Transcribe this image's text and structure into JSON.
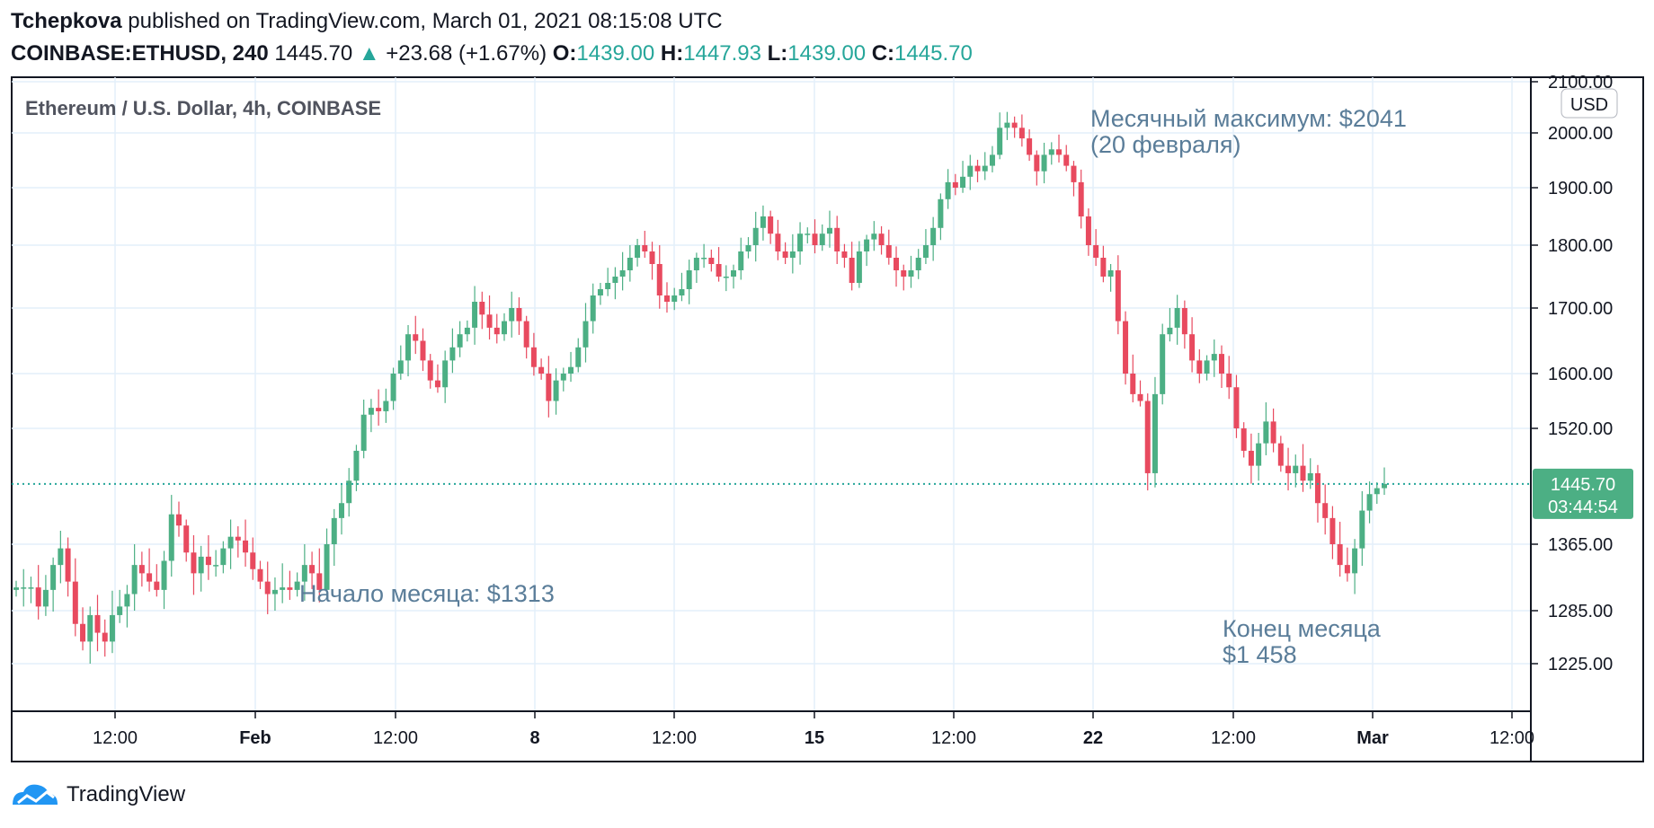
{
  "header": {
    "author": "Tchepkova",
    "published_text": "published on TradingView.com, March 01, 2021 08:15:08 UTC",
    "symbol": "COINBASE:ETHUSD, 240",
    "last": "1445.70",
    "change": "+23.68 (+1.67%)",
    "o_label": "O:",
    "o_value": "1439.00",
    "h_label": "H:",
    "h_value": "1447.93",
    "l_label": "L:",
    "l_value": "1439.00",
    "c_label": "C:",
    "c_value": "1445.70"
  },
  "chart_title": "Ethereum / U.S. Dollar, 4h, COINBASE",
  "currency_badge": "USD",
  "price_label": {
    "price": "1445.70",
    "countdown": "03:44:54"
  },
  "annotations": {
    "monthly_high_line1": "Месячный максимум: $2041",
    "monthly_high_line2": "(20 февраля)",
    "month_start": "Начало месяца: $1313",
    "month_end_line1": "Конец месяца",
    "month_end_line2": "$1 458"
  },
  "footer": {
    "brand": "TradingView",
    "logo_icon": "tradingview-logo-icon"
  },
  "colors": {
    "up": "#26a69a",
    "up_fill": "#4caf84",
    "down": "#ef5350",
    "down_fill": "#e84a5f",
    "annotation": "#5a7d99",
    "grid": "#e3effa",
    "last_line": "#26a69a"
  },
  "chart_data": {
    "type": "candlestick",
    "title": "Ethereum / U.S. Dollar, 4h, COINBASE",
    "x_ticks": [
      "12:00",
      "Feb",
      "12:00",
      "8",
      "12:00",
      "15",
      "12:00",
      "22",
      "12:00",
      "Mar",
      "12:00"
    ],
    "y_ticks": [
      "2100.00",
      "2000.00",
      "1900.00",
      "1800.00",
      "1700.00",
      "1600.00",
      "1520.00",
      "1365.00",
      "1285.00",
      "1225.00"
    ],
    "ylim": [
      1160,
      2100
    ],
    "last_price": 1445.7,
    "grid": true,
    "close_series": [
      1313,
      1313,
      1313,
      1290,
      1310,
      1340,
      1360,
      1320,
      1270,
      1250,
      1280,
      1260,
      1250,
      1280,
      1290,
      1305,
      1340,
      1330,
      1320,
      1310,
      1345,
      1405,
      1390,
      1355,
      1330,
      1350,
      1340,
      1340,
      1360,
      1375,
      1370,
      1355,
      1335,
      1320,
      1305,
      1310,
      1313,
      1310,
      1320,
      1340,
      1330,
      1310,
      1365,
      1400,
      1420,
      1450,
      1490,
      1540,
      1550,
      1545,
      1560,
      1600,
      1620,
      1660,
      1650,
      1620,
      1590,
      1580,
      1620,
      1640,
      1660,
      1670,
      1710,
      1690,
      1670,
      1660,
      1680,
      1700,
      1680,
      1640,
      1610,
      1600,
      1560,
      1590,
      1600,
      1610,
      1640,
      1680,
      1720,
      1730,
      1740,
      1750,
      1760,
      1780,
      1800,
      1790,
      1770,
      1720,
      1710,
      1720,
      1730,
      1760,
      1780,
      1780,
      1770,
      1750,
      1750,
      1760,
      1790,
      1800,
      1830,
      1850,
      1820,
      1790,
      1780,
      1790,
      1820,
      1820,
      1800,
      1820,
      1830,
      1790,
      1780,
      1740,
      1790,
      1810,
      1820,
      1800,
      1780,
      1760,
      1750,
      1760,
      1780,
      1800,
      1830,
      1880,
      1910,
      1900,
      1920,
      1940,
      1930,
      1940,
      1960,
      2010,
      2020,
      2010,
      1990,
      1960,
      1930,
      1960,
      1970,
      1960,
      1940,
      1910,
      1850,
      1800,
      1780,
      1750,
      1760,
      1680,
      1600,
      1570,
      1560,
      1460,
      1570,
      1660,
      1670,
      1700,
      1660,
      1620,
      1600,
      1620,
      1630,
      1600,
      1580,
      1520,
      1490,
      1470,
      1500,
      1530,
      1500,
      1470,
      1460,
      1470,
      1450,
      1460,
      1420,
      1400,
      1365,
      1340,
      1330,
      1360,
      1410,
      1432,
      1440,
      1445.7
    ]
  }
}
